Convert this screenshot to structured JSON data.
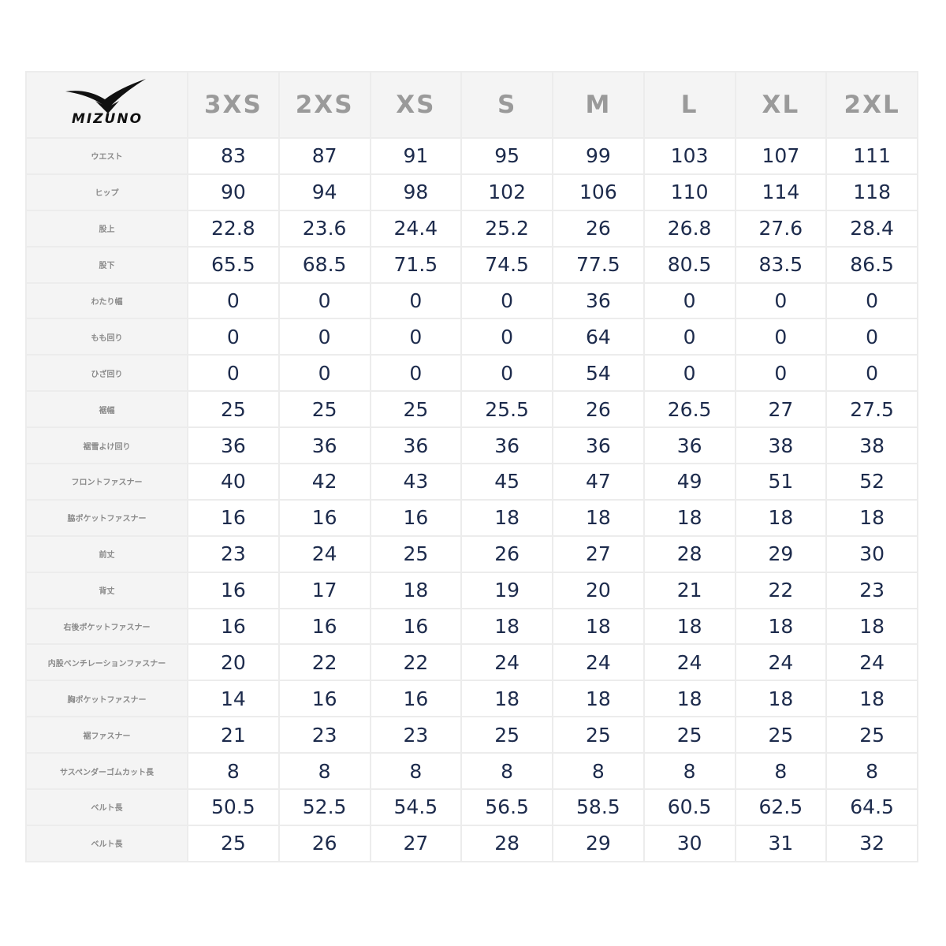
{
  "logo": "MIZUNO",
  "table": {
    "sizes": [
      "3XS",
      "2XS",
      "XS",
      "S",
      "M",
      "L",
      "XL",
      "2XL"
    ],
    "rows": [
      {
        "label": "ウエスト",
        "values": [
          "83",
          "87",
          "91",
          "95",
          "99",
          "103",
          "107",
          "111"
        ]
      },
      {
        "label": "ヒップ",
        "values": [
          "90",
          "94",
          "98",
          "102",
          "106",
          "110",
          "114",
          "118"
        ]
      },
      {
        "label": "股上",
        "values": [
          "22.8",
          "23.6",
          "24.4",
          "25.2",
          "26",
          "26.8",
          "27.6",
          "28.4"
        ]
      },
      {
        "label": "股下",
        "values": [
          "65.5",
          "68.5",
          "71.5",
          "74.5",
          "77.5",
          "80.5",
          "83.5",
          "86.5"
        ]
      },
      {
        "label": "わたり幅",
        "values": [
          "0",
          "0",
          "0",
          "0",
          "36",
          "0",
          "0",
          "0"
        ]
      },
      {
        "label": "もも回り",
        "values": [
          "0",
          "0",
          "0",
          "0",
          "64",
          "0",
          "0",
          "0"
        ]
      },
      {
        "label": "ひざ回り",
        "values": [
          "0",
          "0",
          "0",
          "0",
          "54",
          "0",
          "0",
          "0"
        ]
      },
      {
        "label": "裾幅",
        "values": [
          "25",
          "25",
          "25",
          "25.5",
          "26",
          "26.5",
          "27",
          "27.5"
        ]
      },
      {
        "label": "裾雪よけ回り",
        "values": [
          "36",
          "36",
          "36",
          "36",
          "36",
          "36",
          "38",
          "38"
        ]
      },
      {
        "label": "フロントファスナー",
        "values": [
          "40",
          "42",
          "43",
          "45",
          "47",
          "49",
          "51",
          "52"
        ]
      },
      {
        "label": "脇ポケットファスナー",
        "values": [
          "16",
          "16",
          "16",
          "18",
          "18",
          "18",
          "18",
          "18"
        ]
      },
      {
        "label": "前丈",
        "values": [
          "23",
          "24",
          "25",
          "26",
          "27",
          "28",
          "29",
          "30"
        ]
      },
      {
        "label": "背丈",
        "values": [
          "16",
          "17",
          "18",
          "19",
          "20",
          "21",
          "22",
          "23"
        ]
      },
      {
        "label": "右後ポケットファスナー",
        "values": [
          "16",
          "16",
          "16",
          "18",
          "18",
          "18",
          "18",
          "18"
        ]
      },
      {
        "label": "内股ベンチレーションファスナー",
        "values": [
          "20",
          "22",
          "22",
          "24",
          "24",
          "24",
          "24",
          "24"
        ]
      },
      {
        "label": "胸ポケットファスナー",
        "values": [
          "14",
          "16",
          "16",
          "18",
          "18",
          "18",
          "18",
          "18"
        ]
      },
      {
        "label": "裾ファスナー",
        "values": [
          "21",
          "23",
          "23",
          "25",
          "25",
          "25",
          "25",
          "25"
        ]
      },
      {
        "label": "サスペンダーゴムカット長",
        "values": [
          "8",
          "8",
          "8",
          "8",
          "8",
          "8",
          "8",
          "8"
        ]
      },
      {
        "label": "ベルト長",
        "values": [
          "50.5",
          "52.5",
          "54.5",
          "56.5",
          "58.5",
          "60.5",
          "62.5",
          "64.5"
        ]
      },
      {
        "label": "ベルト長",
        "values": [
          "25",
          "26",
          "27",
          "28",
          "29",
          "30",
          "31",
          "32"
        ]
      }
    ]
  }
}
